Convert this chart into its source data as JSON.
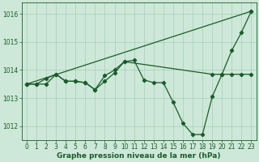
{
  "line1_x": [
    0,
    1,
    2,
    3,
    4,
    5,
    6,
    7,
    8,
    9,
    10,
    11,
    12,
    13,
    14,
    15,
    16,
    17,
    18,
    19,
    20,
    21,
    22,
    23
  ],
  "line1_y": [
    1013.5,
    1013.5,
    1013.7,
    1013.85,
    1013.6,
    1013.6,
    1013.55,
    1013.3,
    1013.6,
    1013.9,
    1014.3,
    1014.35,
    1013.65,
    1013.55,
    1013.55,
    1012.85,
    1012.1,
    1011.7,
    1011.7,
    1013.05,
    1013.85,
    1014.7,
    1015.35,
    1016.1
  ],
  "line2_x": [
    0,
    23
  ],
  "line2_y": [
    1013.5,
    1016.1
  ],
  "line3_x": [
    0,
    1,
    2,
    3,
    4,
    5,
    6,
    7,
    8,
    9,
    10,
    19,
    20,
    21,
    22,
    23
  ],
  "line3_y": [
    1013.5,
    1013.5,
    1013.5,
    1013.85,
    1013.6,
    1013.6,
    1013.55,
    1013.3,
    1013.8,
    1014.0,
    1014.3,
    1013.85,
    1013.85,
    1013.85,
    1013.85,
    1013.85
  ],
  "bg_color": "#cde8d8",
  "line_color": "#1a5c2a",
  "grid_color": "#a8cdb8",
  "xlabel": "Graphe pression niveau de la mer (hPa)",
  "ylim": [
    1011.5,
    1016.4
  ],
  "xlim": [
    -0.5,
    23.5
  ],
  "yticks": [
    1012,
    1013,
    1014,
    1015,
    1016
  ],
  "xticks": [
    0,
    1,
    2,
    3,
    4,
    5,
    6,
    7,
    8,
    9,
    10,
    11,
    12,
    13,
    14,
    15,
    16,
    17,
    18,
    19,
    20,
    21,
    22,
    23
  ],
  "tick_fontsize": 5.5,
  "xlabel_fontsize": 6.5
}
